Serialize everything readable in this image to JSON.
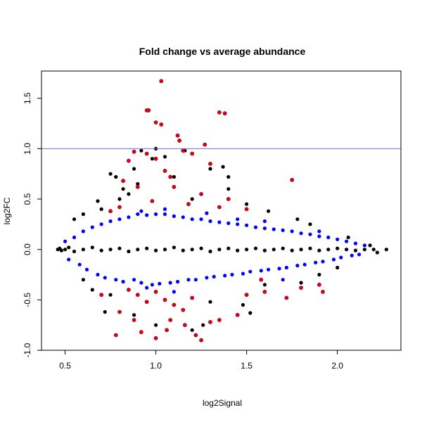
{
  "chart_data": {
    "type": "scatter",
    "title": "Fold change vs average abundance",
    "xlabel": "log2Signal",
    "ylabel": "log2FC",
    "xlim": [
      0.37,
      2.35
    ],
    "ylim": [
      -1.0,
      1.77
    ],
    "x_ticks": [
      0.5,
      1.0,
      1.5,
      2.0
    ],
    "x_tick_labels": [
      "0.5",
      "1.0",
      "1.5",
      "2.0"
    ],
    "y_ticks": [
      -1.0,
      -0.5,
      0.0,
      0.5,
      1.0,
      1.5
    ],
    "y_tick_labels": [
      "-1.0",
      "-0.5",
      "0.0",
      "0.5",
      "1.0",
      "1.5"
    ],
    "grid": false,
    "reference_lines": [
      {
        "y": 1.0,
        "color": "#7070e0"
      }
    ],
    "colors": {
      "black": "#000000",
      "blue": "#0000ff",
      "red": "#e0001a"
    },
    "series": [
      {
        "color": "black",
        "points": [
          [
            0.46,
            0.0
          ],
          [
            0.47,
            0.01
          ],
          [
            0.48,
            -0.01
          ],
          [
            0.5,
            0.0
          ],
          [
            0.52,
            0.02
          ],
          [
            0.55,
            -0.02
          ],
          [
            0.6,
            0.0
          ],
          [
            0.65,
            0.02
          ],
          [
            0.7,
            -0.01
          ],
          [
            0.75,
            0.0
          ],
          [
            0.8,
            0.01
          ],
          [
            0.85,
            -0.02
          ],
          [
            0.9,
            0.0
          ],
          [
            0.95,
            0.01
          ],
          [
            1.0,
            -0.01
          ],
          [
            1.05,
            0.0
          ],
          [
            1.1,
            0.02
          ],
          [
            1.15,
            -0.01
          ],
          [
            1.2,
            0.0
          ],
          [
            1.25,
            0.01
          ],
          [
            1.3,
            -0.02
          ],
          [
            1.35,
            0.0
          ],
          [
            1.4,
            0.01
          ],
          [
            1.45,
            -0.01
          ],
          [
            1.5,
            0.0
          ],
          [
            1.55,
            0.01
          ],
          [
            1.6,
            -0.01
          ],
          [
            1.65,
            0.0
          ],
          [
            1.7,
            0.01
          ],
          [
            1.75,
            -0.01
          ],
          [
            1.8,
            0.0
          ],
          [
            1.85,
            0.01
          ],
          [
            1.9,
            -0.01
          ],
          [
            1.95,
            0.0
          ],
          [
            2.0,
            0.01
          ],
          [
            2.05,
            0.0
          ],
          [
            2.1,
            -0.01
          ],
          [
            2.15,
            0.0
          ],
          [
            2.2,
            0.0
          ],
          [
            2.27,
            0.0
          ],
          [
            0.75,
            0.75
          ],
          [
            0.78,
            0.72
          ],
          [
            0.82,
            0.6
          ],
          [
            0.85,
            0.55
          ],
          [
            0.88,
            0.8
          ],
          [
            0.9,
            0.65
          ],
          [
            0.95,
            0.95
          ],
          [
            0.98,
            0.9
          ],
          [
            1.05,
            0.92
          ],
          [
            1.1,
            0.72
          ],
          [
            1.16,
            0.98
          ],
          [
            1.3,
            0.8
          ],
          [
            1.37,
            0.82
          ],
          [
            0.72,
            -0.62
          ],
          [
            0.88,
            -0.65
          ],
          [
            1.0,
            -0.75
          ],
          [
            1.2,
            -0.8
          ],
          [
            1.26,
            -0.75
          ],
          [
            1.3,
            -0.52
          ],
          [
            1.48,
            -0.55
          ],
          [
            1.52,
            -0.63
          ],
          [
            0.55,
            0.3
          ],
          [
            0.6,
            0.35
          ],
          [
            0.68,
            0.48
          ],
          [
            0.7,
            0.4
          ],
          [
            1.4,
            0.6
          ],
          [
            1.5,
            0.45
          ],
          [
            1.62,
            0.38
          ],
          [
            1.78,
            0.3
          ],
          [
            1.85,
            0.25
          ],
          [
            1.9,
            -0.25
          ],
          [
            2.0,
            -0.18
          ],
          [
            2.06,
            0.12
          ],
          [
            2.18,
            0.04
          ],
          [
            2.22,
            -0.03
          ],
          [
            0.6,
            -0.3
          ],
          [
            0.65,
            -0.4
          ],
          [
            0.75,
            -0.45
          ],
          [
            1.6,
            -0.35
          ],
          [
            1.8,
            -0.33
          ],
          [
            1.4,
            0.72
          ],
          [
            0.92,
            0.98
          ],
          [
            1.0,
            1.0
          ],
          [
            0.8,
            0.5
          ],
          [
            1.2,
            0.5
          ]
        ]
      },
      {
        "color": "blue",
        "points": [
          [
            0.5,
            0.08
          ],
          [
            0.52,
            -0.1
          ],
          [
            0.55,
            0.12
          ],
          [
            0.58,
            -0.15
          ],
          [
            0.6,
            0.18
          ],
          [
            0.62,
            -0.2
          ],
          [
            0.65,
            0.22
          ],
          [
            0.68,
            -0.25
          ],
          [
            0.7,
            0.25
          ],
          [
            0.72,
            -0.28
          ],
          [
            0.75,
            0.28
          ],
          [
            0.78,
            -0.3
          ],
          [
            0.8,
            0.3
          ],
          [
            0.82,
            -0.32
          ],
          [
            0.85,
            0.32
          ],
          [
            0.88,
            -0.3
          ],
          [
            0.9,
            0.35
          ],
          [
            0.92,
            -0.33
          ],
          [
            0.95,
            0.34
          ],
          [
            0.98,
            -0.35
          ],
          [
            1.0,
            0.35
          ],
          [
            1.02,
            -0.34
          ],
          [
            1.05,
            0.35
          ],
          [
            1.08,
            -0.33
          ],
          [
            1.1,
            0.33
          ],
          [
            1.12,
            -0.32
          ],
          [
            1.15,
            0.32
          ],
          [
            1.18,
            -0.3
          ],
          [
            1.2,
            0.3
          ],
          [
            1.22,
            -0.3
          ],
          [
            1.25,
            0.3
          ],
          [
            1.28,
            -0.28
          ],
          [
            1.3,
            0.28
          ],
          [
            1.32,
            -0.27
          ],
          [
            1.35,
            0.27
          ],
          [
            1.38,
            -0.26
          ],
          [
            1.4,
            0.26
          ],
          [
            1.42,
            -0.25
          ],
          [
            1.45,
            0.25
          ],
          [
            1.48,
            -0.24
          ],
          [
            1.5,
            0.24
          ],
          [
            1.52,
            -0.22
          ],
          [
            1.55,
            0.22
          ],
          [
            1.58,
            -0.21
          ],
          [
            1.6,
            0.21
          ],
          [
            1.62,
            -0.2
          ],
          [
            1.65,
            0.2
          ],
          [
            1.68,
            -0.19
          ],
          [
            1.7,
            0.19
          ],
          [
            1.72,
            -0.18
          ],
          [
            1.75,
            0.18
          ],
          [
            1.78,
            -0.16
          ],
          [
            1.8,
            0.16
          ],
          [
            1.82,
            -0.15
          ],
          [
            1.85,
            0.15
          ],
          [
            1.88,
            -0.13
          ],
          [
            1.9,
            0.13
          ],
          [
            1.92,
            -0.12
          ],
          [
            1.95,
            0.12
          ],
          [
            1.98,
            -0.1
          ],
          [
            2.0,
            0.1
          ],
          [
            2.02,
            -0.08
          ],
          [
            2.05,
            0.08
          ],
          [
            2.08,
            -0.06
          ],
          [
            2.1,
            0.06
          ],
          [
            2.12,
            -0.05
          ],
          [
            2.15,
            0.04
          ],
          [
            0.92,
            0.38
          ],
          [
            1.05,
            0.4
          ],
          [
            1.28,
            0.36
          ],
          [
            1.6,
            0.28
          ],
          [
            1.7,
            -0.3
          ],
          [
            1.1,
            -0.42
          ],
          [
            0.95,
            -0.38
          ],
          [
            1.45,
            0.3
          ],
          [
            1.9,
            0.18
          ]
        ]
      },
      {
        "color": "red",
        "points": [
          [
            1.03,
            1.67
          ],
          [
            0.95,
            1.38
          ],
          [
            0.96,
            1.38
          ],
          [
            1.35,
            1.36
          ],
          [
            1.38,
            1.35
          ],
          [
            1.27,
            1.04
          ],
          [
            1.0,
            1.26
          ],
          [
            1.03,
            1.24
          ],
          [
            1.12,
            1.13
          ],
          [
            1.13,
            1.08
          ],
          [
            0.88,
            0.97
          ],
          [
            0.95,
            0.95
          ],
          [
            1.15,
            0.98
          ],
          [
            1.2,
            0.95
          ],
          [
            1.3,
            0.85
          ],
          [
            1.0,
            0.9
          ],
          [
            0.85,
            0.88
          ],
          [
            1.05,
            0.78
          ],
          [
            1.08,
            0.72
          ],
          [
            0.82,
            0.68
          ],
          [
            0.9,
            0.62
          ],
          [
            1.1,
            0.62
          ],
          [
            1.25,
            0.55
          ],
          [
            1.4,
            0.5
          ],
          [
            1.5,
            0.4
          ],
          [
            1.75,
            0.69
          ],
          [
            0.75,
            0.38
          ],
          [
            0.8,
            0.42
          ],
          [
            0.98,
            0.48
          ],
          [
            1.18,
            0.45
          ],
          [
            1.35,
            0.42
          ],
          [
            0.85,
            -0.4
          ],
          [
            0.9,
            -0.45
          ],
          [
            0.95,
            -0.52
          ],
          [
            1.0,
            -0.42
          ],
          [
            1.05,
            -0.5
          ],
          [
            1.1,
            -0.55
          ],
          [
            1.15,
            -0.6
          ],
          [
            1.2,
            -0.48
          ],
          [
            0.8,
            -0.62
          ],
          [
            0.78,
            -0.85
          ],
          [
            0.92,
            -0.82
          ],
          [
            1.0,
            -0.88
          ],
          [
            1.06,
            -0.8
          ],
          [
            1.08,
            -0.7
          ],
          [
            1.16,
            -0.75
          ],
          [
            1.25,
            -0.9
          ],
          [
            1.3,
            -0.72
          ],
          [
            1.35,
            -0.7
          ],
          [
            1.45,
            -0.65
          ],
          [
            1.5,
            -0.45
          ],
          [
            1.6,
            -0.42
          ],
          [
            1.72,
            -0.48
          ],
          [
            1.9,
            -0.35
          ],
          [
            1.92,
            -0.42
          ],
          [
            1.58,
            -0.3
          ],
          [
            1.8,
            -0.38
          ],
          [
            0.7,
            -0.45
          ],
          [
            0.88,
            -0.7
          ],
          [
            1.22,
            -0.85
          ]
        ]
      }
    ]
  }
}
